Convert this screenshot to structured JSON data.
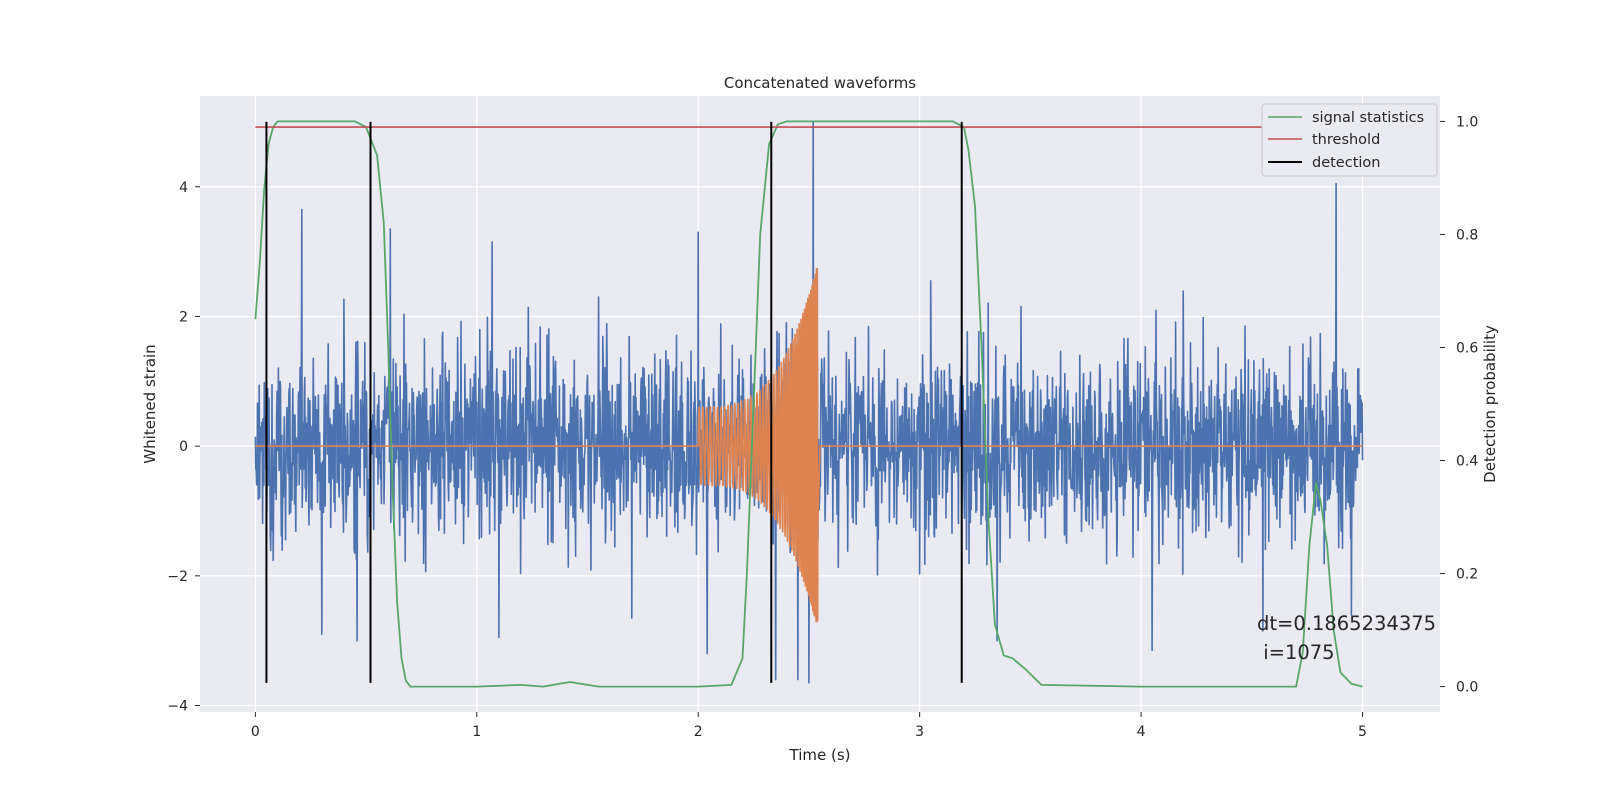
{
  "chart_data": {
    "type": "line",
    "title": "Concatenated waveforms",
    "xlabel": "Time (s)",
    "ylabel": "Whitened strain",
    "y2label": "Detection probability",
    "xlim": [
      -0.25,
      5.35
    ],
    "ylim": [
      -4.1,
      5.4
    ],
    "y2lim": [
      -0.045,
      1.045
    ],
    "xticks": [
      0,
      1,
      2,
      3,
      4,
      5
    ],
    "yticks": [
      -4,
      -2,
      0,
      2,
      4
    ],
    "y2ticks": [
      0.0,
      0.2,
      0.4,
      0.6,
      0.8,
      1.0
    ],
    "grid": true,
    "legend_position": "top-right",
    "colors": {
      "background": "#eaeaf2",
      "grid": "#ffffff",
      "strain": "#4c72b0",
      "injection": "#dd8452",
      "signal_statistics": "#55a868",
      "threshold": "#c44e52",
      "detection": "#000000"
    },
    "legend": [
      {
        "key": "signal_statistics",
        "label": "signal statistics"
      },
      {
        "key": "threshold",
        "label": "threshold"
      },
      {
        "key": "detection",
        "label": "detection"
      }
    ],
    "series": [
      {
        "key": "strain",
        "axis": "left",
        "description_x_range": [
          0,
          5
        ],
        "typical_envelope": [
          -1.8,
          2.5
        ],
        "peaks": [
          {
            "x": 0.21,
            "y": 3.65
          },
          {
            "x": 0.3,
            "y": -2.9
          },
          {
            "x": 0.46,
            "y": -3.0
          },
          {
            "x": 0.61,
            "y": 3.35
          },
          {
            "x": 1.07,
            "y": 3.15
          },
          {
            "x": 1.1,
            "y": -2.95
          },
          {
            "x": 1.55,
            "y": 2.3
          },
          {
            "x": 1.7,
            "y": -2.65
          },
          {
            "x": 2.0,
            "y": 3.3
          },
          {
            "x": 2.04,
            "y": -3.2
          },
          {
            "x": 2.35,
            "y": -3.6
          },
          {
            "x": 2.45,
            "y": -3.6
          },
          {
            "x": 2.5,
            "y": -3.65
          },
          {
            "x": 2.52,
            "y": 5.0
          },
          {
            "x": 3.05,
            "y": 2.55
          },
          {
            "x": 3.35,
            "y": -3.0
          },
          {
            "x": 4.05,
            "y": -3.15
          },
          {
            "x": 4.55,
            "y": -2.85
          },
          {
            "x": 4.88,
            "y": 4.05
          },
          {
            "x": 4.95,
            "y": -2.6
          }
        ]
      },
      {
        "key": "injection",
        "axis": "left",
        "x_range": [
          0,
          5
        ],
        "chirp_start": 2.0,
        "chirp_end": 2.54,
        "start_amplitude": 0.6,
        "peak_amplitude": 2.9
      },
      {
        "key": "signal_statistics",
        "axis": "right",
        "x": [
          0,
          0.02,
          0.04,
          0.06,
          0.08,
          0.1,
          0.15,
          0.45,
          0.5,
          0.55,
          0.58,
          0.6,
          0.62,
          0.64,
          0.66,
          0.68,
          0.7,
          0.75,
          1.0,
          1.2,
          1.3,
          1.42,
          1.55,
          2.0,
          2.15,
          2.2,
          2.22,
          2.25,
          2.28,
          2.32,
          2.36,
          2.4,
          3.15,
          3.2,
          3.22,
          3.25,
          3.28,
          3.31,
          3.34,
          3.38,
          3.42,
          3.48,
          3.55,
          4.0,
          4.7,
          4.73,
          4.76,
          4.79,
          4.81,
          4.84,
          4.87,
          4.9,
          4.95,
          5.0
        ],
        "y": [
          0.65,
          0.75,
          0.88,
          0.96,
          0.99,
          1.0,
          1.0,
          1.0,
          0.99,
          0.94,
          0.82,
          0.6,
          0.35,
          0.15,
          0.05,
          0.01,
          0.0,
          0.0,
          0.0,
          0.003,
          0.0,
          0.008,
          0.0,
          0.0,
          0.003,
          0.05,
          0.2,
          0.5,
          0.8,
          0.96,
          0.995,
          1.0,
          1.0,
          0.99,
          0.95,
          0.85,
          0.6,
          0.3,
          0.11,
          0.055,
          0.05,
          0.03,
          0.003,
          0.0,
          0.0,
          0.06,
          0.25,
          0.36,
          0.33,
          0.25,
          0.1,
          0.025,
          0.005,
          0.0
        ]
      },
      {
        "key": "threshold",
        "axis": "right",
        "x": [
          0,
          5
        ],
        "y": [
          0.99,
          0.99
        ]
      },
      {
        "key": "detection",
        "axis": "left",
        "type": "vlines",
        "x": [
          0.05,
          0.52,
          2.33,
          3.19
        ],
        "ymin": -3.65,
        "ymax": 5.0
      }
    ],
    "annotations": [
      {
        "x": 4.5,
        "y": -2.7,
        "lines": [
          "dt=0.1865234375",
          " i=1075"
        ]
      }
    ]
  }
}
